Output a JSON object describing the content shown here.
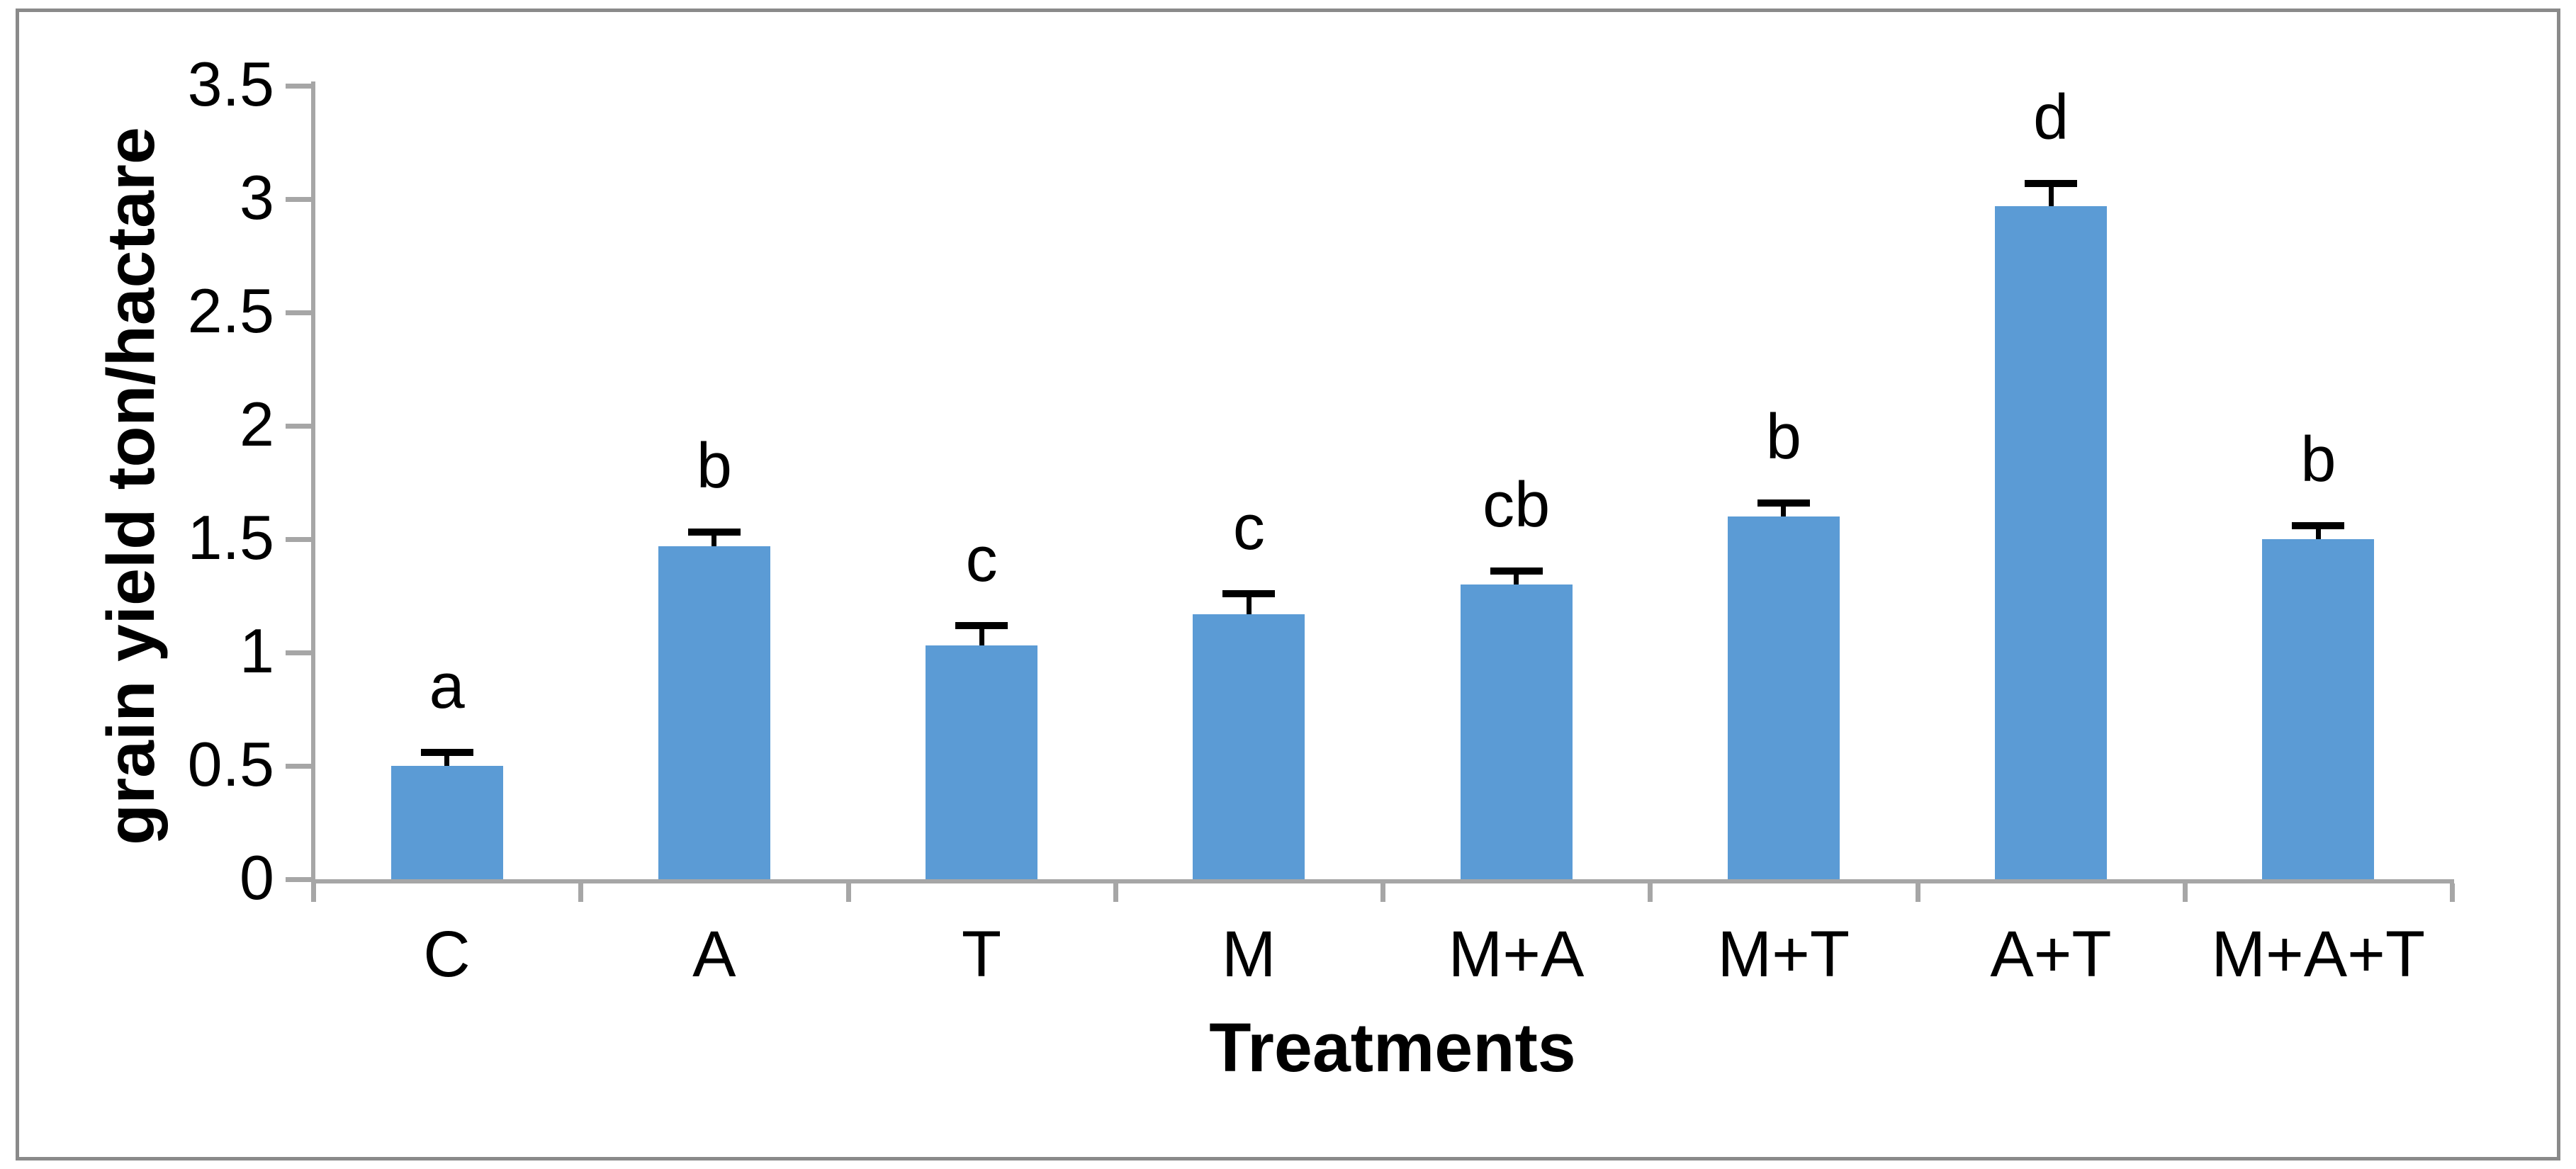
{
  "figure": {
    "background": "#ffffff",
    "border_color": "#8a8a8a"
  },
  "chart_data": {
    "type": "bar",
    "title": "",
    "xlabel": "Treatments",
    "ylabel": "grain yield ton/hactare",
    "categories": [
      "C",
      "A",
      "T",
      "M",
      "M+A",
      "M+T",
      "A+T",
      "M+A+T"
    ],
    "values": [
      0.5,
      1.47,
      1.03,
      1.17,
      1.3,
      1.6,
      2.97,
      1.5
    ],
    "error_plus": [
      0.06,
      0.06,
      0.09,
      0.09,
      0.06,
      0.06,
      0.1,
      0.06
    ],
    "sig_letters": [
      "a",
      "b",
      "c",
      "c",
      "cb",
      "b",
      "d",
      "b"
    ],
    "yticks": [
      "0",
      "0.5",
      "1",
      "1.5",
      "2",
      "2.5",
      "3",
      "3.5"
    ],
    "ytick_values": [
      0,
      0.5,
      1,
      1.5,
      2,
      2.5,
      3,
      3.5
    ],
    "ylim": [
      0,
      3.5
    ],
    "grid": false,
    "legend": null,
    "bar_color": "#5b9bd5",
    "axis_color": "#a6a6a6",
    "error_bar_color": "#000000"
  }
}
